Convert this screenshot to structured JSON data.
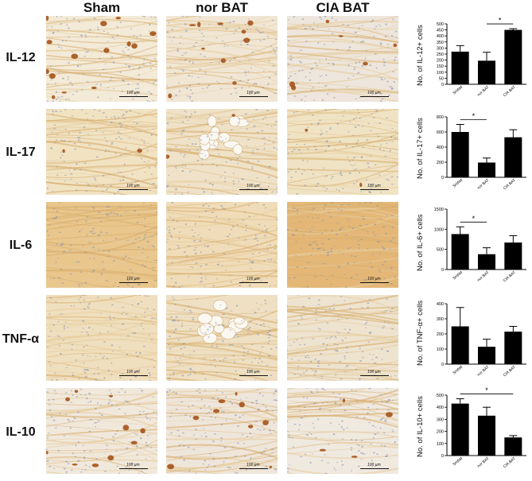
{
  "columns": [
    "Sham",
    "nor BAT",
    "CIA BAT"
  ],
  "rows": [
    "IL-12",
    "IL-17",
    "IL-6",
    "TNF-α",
    "IL-10"
  ],
  "scale_bar_label": "100 μm",
  "chart_data": [
    {
      "type": "bar",
      "categories": [
        "SHAM",
        "nor BAT",
        "CIA BAT"
      ],
      "values": [
        270,
        195,
        450
      ],
      "errors": [
        50,
        70,
        10
      ],
      "ylabel": "No. of IL-12+ cells",
      "ylim": [
        0,
        500
      ],
      "yticks": [
        0,
        50,
        100,
        150,
        200,
        250,
        300,
        350,
        400,
        450,
        500
      ],
      "significance": [
        {
          "from": 1,
          "to": 2,
          "label": "*"
        }
      ]
    },
    {
      "type": "bar",
      "categories": [
        "SHAM",
        "nor BAT",
        "CIA BAT"
      ],
      "values": [
        600,
        195,
        530
      ],
      "errors": [
        100,
        60,
        100
      ],
      "ylabel": "No. of IL-17+ cells",
      "ylim": [
        0,
        800
      ],
      "yticks": [
        0,
        200,
        400,
        600,
        800
      ],
      "significance": [
        {
          "from": 0,
          "to": 1,
          "label": "*"
        }
      ]
    },
    {
      "type": "bar",
      "categories": [
        "SHAM",
        "nor BAT",
        "CIA BAT"
      ],
      "values": [
        880,
        380,
        670
      ],
      "errors": [
        180,
        160,
        170
      ],
      "ylabel": "No. of IL-6+ cells",
      "ylim": [
        0,
        1500
      ],
      "yticks": [
        0,
        500,
        1000,
        1500
      ],
      "significance": [
        {
          "from": 0,
          "to": 1,
          "label": "*"
        }
      ]
    },
    {
      "type": "bar",
      "categories": [
        "SHAM",
        "nor BAT",
        "CIA BAT"
      ],
      "values": [
        250,
        115,
        215
      ],
      "errors": [
        125,
        50,
        35
      ],
      "ylabel": "No. of TNF-α+ cells",
      "ylim": [
        0,
        400
      ],
      "yticks": [
        0,
        100,
        200,
        300,
        400
      ],
      "significance": []
    },
    {
      "type": "bar",
      "categories": [
        "SHAM",
        "nor BAT",
        "CIA BAT"
      ],
      "values": [
        430,
        330,
        150
      ],
      "errors": [
        40,
        70,
        15
      ],
      "ylabel": "No. of IL-10+ cells",
      "ylim": [
        0,
        500
      ],
      "yticks": [
        0,
        100,
        200,
        300,
        400,
        500
      ],
      "significance": [
        {
          "from": 0,
          "to": 2,
          "label": "*"
        }
      ]
    }
  ],
  "colors": {
    "bar": "#000000",
    "tissue_light": "#efe4c8",
    "tissue_brown": "#c98a3a",
    "nuclei": "#7f8fb0",
    "stain_dark": "#a5531a"
  }
}
